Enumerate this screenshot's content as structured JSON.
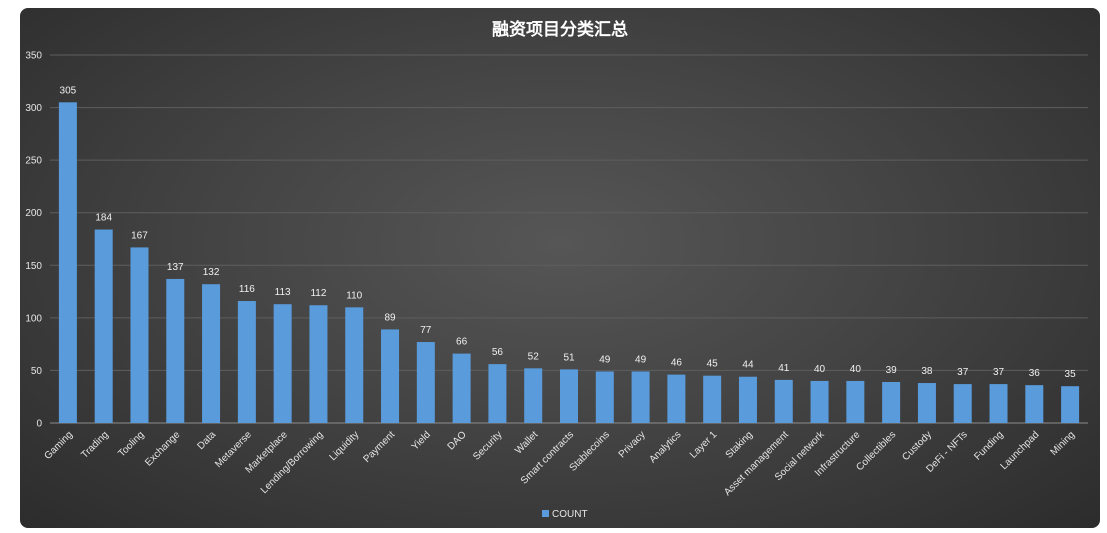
{
  "chart_data": {
    "type": "bar",
    "title": "融资项目分类汇总",
    "xlabel": "",
    "ylabel": "",
    "ylim": [
      0,
      350
    ],
    "yticks": [
      0,
      50,
      100,
      150,
      200,
      250,
      300,
      350
    ],
    "grid": true,
    "legend_position": "bottom",
    "categories": [
      "Gaming",
      "Trading",
      "Tooling",
      "Exchange",
      "Data",
      "Metaverse",
      "Marketplace",
      "Lending/Borrowing",
      "Liquidity",
      "Payment",
      "Yield",
      "DAO",
      "Security",
      "Wallet",
      "Smart contracts",
      "Stablecoins",
      "Privacy",
      "Analytics",
      "Layer 1",
      "Staking",
      "Asset management",
      "Social network",
      "Infrastructure",
      "Collectibles",
      "Custody",
      "DeFi - NFTs",
      "Funding",
      "Launchpad",
      "Mining"
    ],
    "series": [
      {
        "name": "COUNT",
        "color": "#5a9bdc",
        "values": [
          305,
          184,
          167,
          137,
          132,
          116,
          113,
          112,
          110,
          89,
          77,
          66,
          56,
          52,
          51,
          49,
          49,
          46,
          45,
          44,
          41,
          40,
          40,
          39,
          38,
          37,
          37,
          36,
          35
        ]
      }
    ]
  }
}
